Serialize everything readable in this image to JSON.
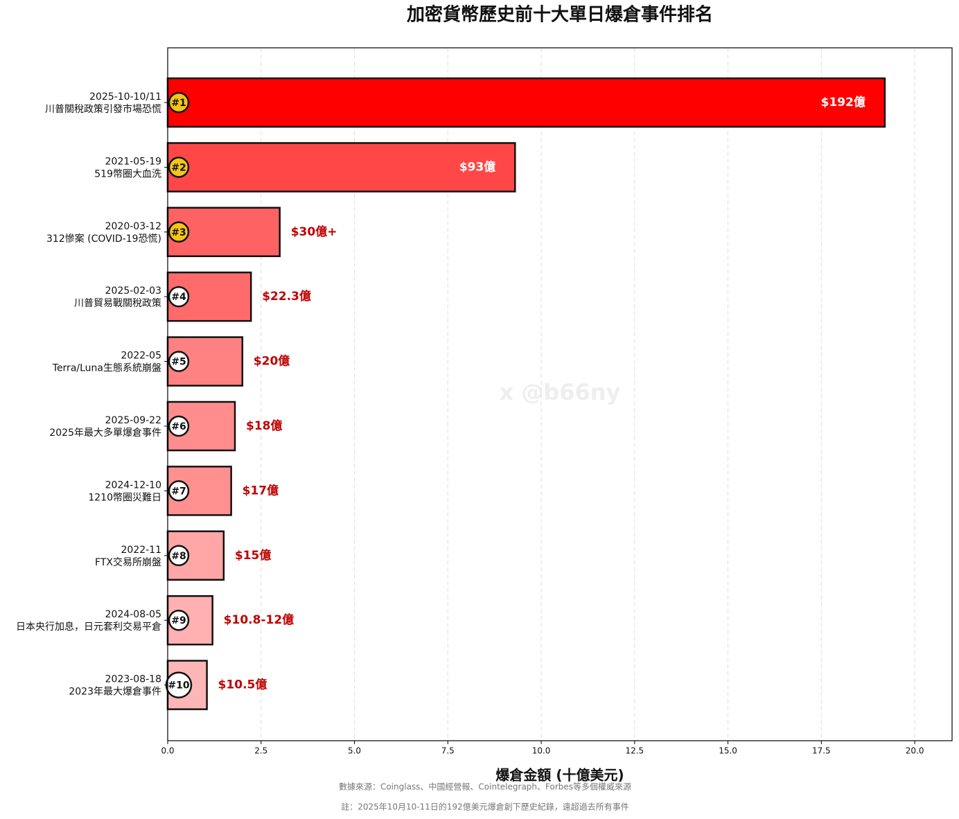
{
  "chart_data": {
    "type": "barh",
    "title": "加密貨幣歷史前十大單日爆倉事件排名",
    "x_label": "爆倉金額 (十億美元)",
    "notes": [
      "數據來源：Coinglass、中國經營報、Cointelegraph、Forbes等多個權威來源",
      "註：2025年10月10-11日的192億美元爆倉創下歷史紀錄，遠超過去所有事件"
    ],
    "watermark": "x @b66ny",
    "categories": [
      "2025-10-10/11",
      "2021-05-19",
      "2020-03-12",
      "2025-02-03",
      "2022-05",
      "2025-09-22",
      "2024-12-10",
      "2022-11",
      "2024-08-05",
      "2023-08-18"
    ],
    "descriptions": [
      "川普關稅政策引發市場恐慌",
      "519幣圈大血洗",
      "312慘案 (COVID-19恐慌)",
      "川普貿易戰關稅政策",
      "Terra/Luna生態系統崩盤",
      "2025年最大多單爆倉事件",
      "1210幣圈災難日",
      "FTX交易所崩盤",
      "日本央行加息，日元套利交易平倉",
      "2023年最大爆倉事件"
    ],
    "ranks": [
      "#1",
      "#2",
      "#3",
      "#4",
      "#5",
      "#6",
      "#7",
      "#8",
      "#9",
      "#10"
    ],
    "values": [
      19.2,
      9.3,
      3.0,
      2.23,
      2.0,
      1.8,
      1.7,
      1.5,
      1.2,
      1.05
    ],
    "value_labels": [
      "$192億",
      "$93億",
      "$30億+",
      "$22.3億",
      "$20億",
      "$18億",
      "$17億",
      "$15億",
      "$10.8-12億",
      "$10.5億"
    ],
    "colors": [
      "#ff0000",
      "#ff4747",
      "#ff6262",
      "#ff6a6a",
      "#ff8282",
      "#ff8d8d",
      "#ff9090",
      "#ffa6a6",
      "#ffb0b0",
      "#ffb6b6"
    ],
    "rank_colors": [
      "#f5c518",
      "#f5c518",
      "#f5c518",
      "#ffffff",
      "#ffffff",
      "#ffffff",
      "#ffffff",
      "#ffffff",
      "#ffffff",
      "#ffffff"
    ],
    "xlim": [
      0,
      21
    ],
    "xticks": [
      {
        "value": 0,
        "label": "0.0"
      },
      {
        "value": 2.5,
        "label": "2.5"
      },
      {
        "value": 5,
        "label": "5.0"
      },
      {
        "value": 7.5,
        "label": "7.5"
      },
      {
        "value": 10,
        "label": "10.0"
      },
      {
        "value": 12.5,
        "label": "12.5"
      },
      {
        "value": 15,
        "label": "15.0"
      },
      {
        "value": 17.5,
        "label": "17.5"
      },
      {
        "value": 20,
        "label": "20.0"
      }
    ],
    "grid": true
  }
}
